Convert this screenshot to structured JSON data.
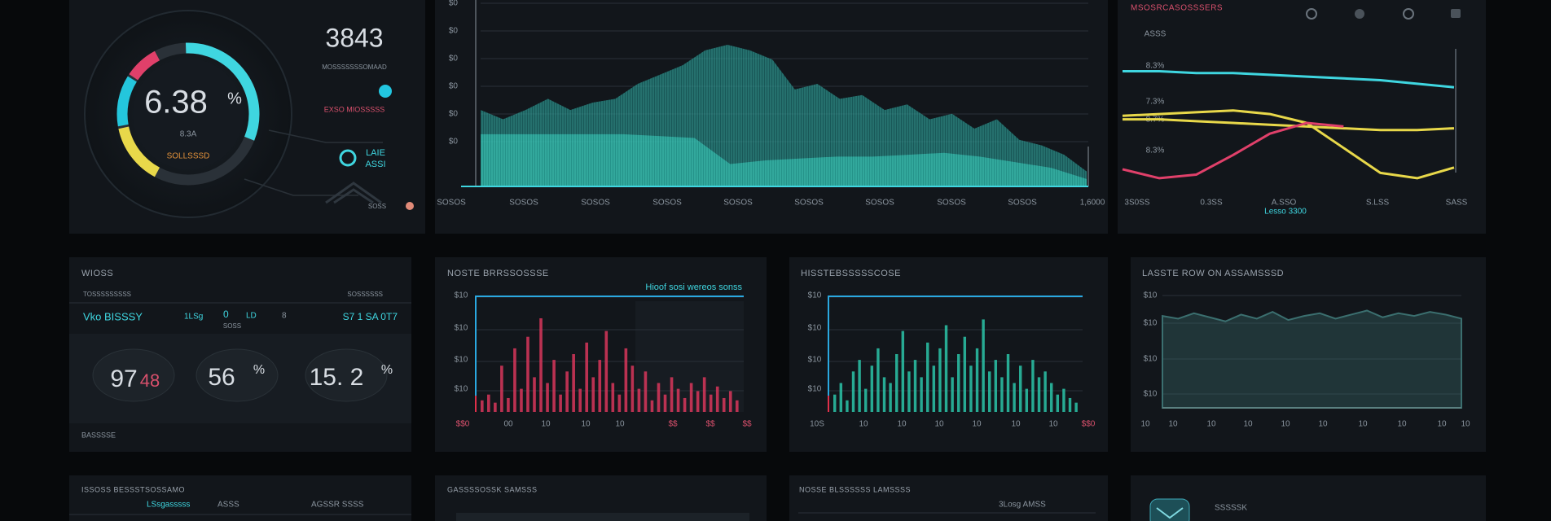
{
  "status_panel": {
    "counter": "3843",
    "counter_caption": "MOSSSSSSSOMAAD",
    "alert": "EXSO MIOSSSSS",
    "badge_line1": "LAIE",
    "badge_line2": "ASSI",
    "footer": "SOSS",
    "gauge": {
      "value": "6.38",
      "unit": "%",
      "sub": "8.3A",
      "caption": "SOLLSSSD"
    }
  },
  "main_chart": {
    "yticks": [
      "$0",
      "$0",
      "$0",
      "$0",
      "$0",
      "$0"
    ],
    "xlabels": [
      "SOSOS",
      "SOSOS",
      "SOSOS",
      "SOSOS",
      "SOSOS",
      "SOSOS",
      "SOSOS",
      "SOSOS",
      "SOSOS",
      "1,6000"
    ],
    "ylim": [
      0,
      100
    ],
    "series": [
      {
        "color": "#1f8f8a",
        "values": [
          41,
          36,
          41,
          47,
          41,
          45,
          47,
          55,
          60,
          65,
          73,
          76,
          73,
          68,
          52,
          55,
          47,
          49,
          41,
          44,
          36,
          39,
          31,
          36,
          25,
          22,
          17,
          8
        ]
      },
      {
        "color": "#2fc4b4",
        "values": [
          28,
          28,
          28,
          28,
          28,
          27,
          26,
          12,
          14,
          15,
          16,
          16,
          17,
          18,
          16,
          13,
          10,
          4
        ]
      }
    ]
  },
  "trend_chart": {
    "title": "MSOSRCASOSSSERS",
    "yticks": [
      "ASSS",
      "8.3%",
      "7.3%",
      "8.7%",
      "8.3%"
    ],
    "xlabels": [
      "3S0SS",
      "0.3SS",
      "A.SSO",
      "S.LSS",
      "SASS"
    ],
    "note": "Lesso 3300",
    "ylim": [
      0,
      100
    ],
    "series": [
      {
        "color": "#3fd6e0",
        "values": [
          71,
          71,
          70,
          70,
          69,
          68,
          67,
          66,
          64,
          62
        ]
      },
      {
        "color": "#e8d84a",
        "values": [
          46,
          47,
          48,
          49,
          47,
          42,
          28,
          14,
          11,
          17
        ]
      },
      {
        "color": "#e8d84a",
        "values": [
          44,
          44,
          43,
          42,
          41,
          40,
          39,
          38,
          38,
          39
        ]
      },
      {
        "color": "#e0406a",
        "values": [
          16,
          11,
          13,
          24,
          36,
          42,
          40,
          null,
          null,
          null
        ]
      }
    ]
  },
  "summary_panel": {
    "title": "WIOSS",
    "left_caption": "TOSSSSSSSSS",
    "right_caption": "SOSSSSSS",
    "name": "Vko BISSSY",
    "stat_a": "1LSg",
    "stat_b": "0",
    "stat_c": "LD",
    "stat_d": "8",
    "stat_sub": "SOSS",
    "date": "S7 1 SA 0T7",
    "kpi_1": "97",
    "kpi_1_suffix": "48",
    "kpi_2": "56",
    "kpi_2_unit": "%",
    "kpi_3": "15. 2",
    "kpi_3_unit": "%",
    "footer": "BASSSSE"
  },
  "red_bars": {
    "title": "NOSTE BRRSSOSSSE",
    "legend": "Hioof sosi wereos sonss",
    "yticks": [
      "$10",
      "$10",
      "$10",
      "$10"
    ],
    "xlabels": [
      "$$0",
      "00",
      "10",
      "10",
      "10",
      "$$",
      "$$",
      "$$"
    ],
    "ylim": [
      0,
      100
    ],
    "color": "#d8365a",
    "values": [
      10,
      15,
      8,
      40,
      12,
      55,
      20,
      65,
      30,
      81,
      25,
      45,
      15,
      35,
      50,
      20,
      60,
      30,
      45,
      70,
      25,
      15,
      55,
      40,
      20,
      35,
      10,
      25,
      15,
      30,
      20,
      12,
      25,
      18,
      30,
      15,
      22,
      12,
      18,
      10
    ]
  },
  "teal_bars": {
    "title": "HISSTEBSSSSSCOSE",
    "yticks": [
      "$10",
      "$10",
      "$10",
      "$10"
    ],
    "xlabels": [
      "10S",
      "10",
      "10",
      "10",
      "10",
      "10",
      "10",
      "$$0"
    ],
    "ylim": [
      0,
      100
    ],
    "color": "#2bc4a8",
    "values": [
      15,
      25,
      10,
      35,
      45,
      20,
      40,
      55,
      30,
      25,
      50,
      70,
      35,
      45,
      30,
      60,
      40,
      55,
      75,
      30,
      50,
      65,
      40,
      55,
      80,
      35,
      45,
      30,
      50,
      25,
      40,
      20,
      45,
      30,
      35,
      25,
      15,
      20,
      12,
      8
    ]
  },
  "area_panel": {
    "title": "LASSTE ROW ON ASSAMSSSD",
    "yticks": [
      "$10",
      "$10",
      "$10",
      "$10"
    ],
    "xlabels": [
      "10",
      "10",
      "10",
      "10",
      "10",
      "10",
      "10",
      "10",
      "10",
      "10"
    ],
    "ylim": [
      0,
      100
    ],
    "color": "#3b6f6f",
    "values": [
      68,
      66,
      70,
      67,
      64,
      69,
      66,
      71,
      65,
      68,
      70,
      66,
      69,
      72,
      67,
      70,
      68,
      71,
      69,
      66
    ]
  },
  "bottom_row": {
    "panel_1_title": "ISSOSS BESSSTSOSSAMO",
    "panel_1_a": "LSsgasssss",
    "panel_1_b": "ASSS",
    "panel_1_c": "AGSSR SSSS",
    "panel_2_title": "GASSSSOSSK SAMSSS",
    "panel_3_title": "NOSSE BLSSSSSS LAMSSSS",
    "panel_3_a": "3Losg  AMSS",
    "panel_4_title": "SSSSSK"
  }
}
